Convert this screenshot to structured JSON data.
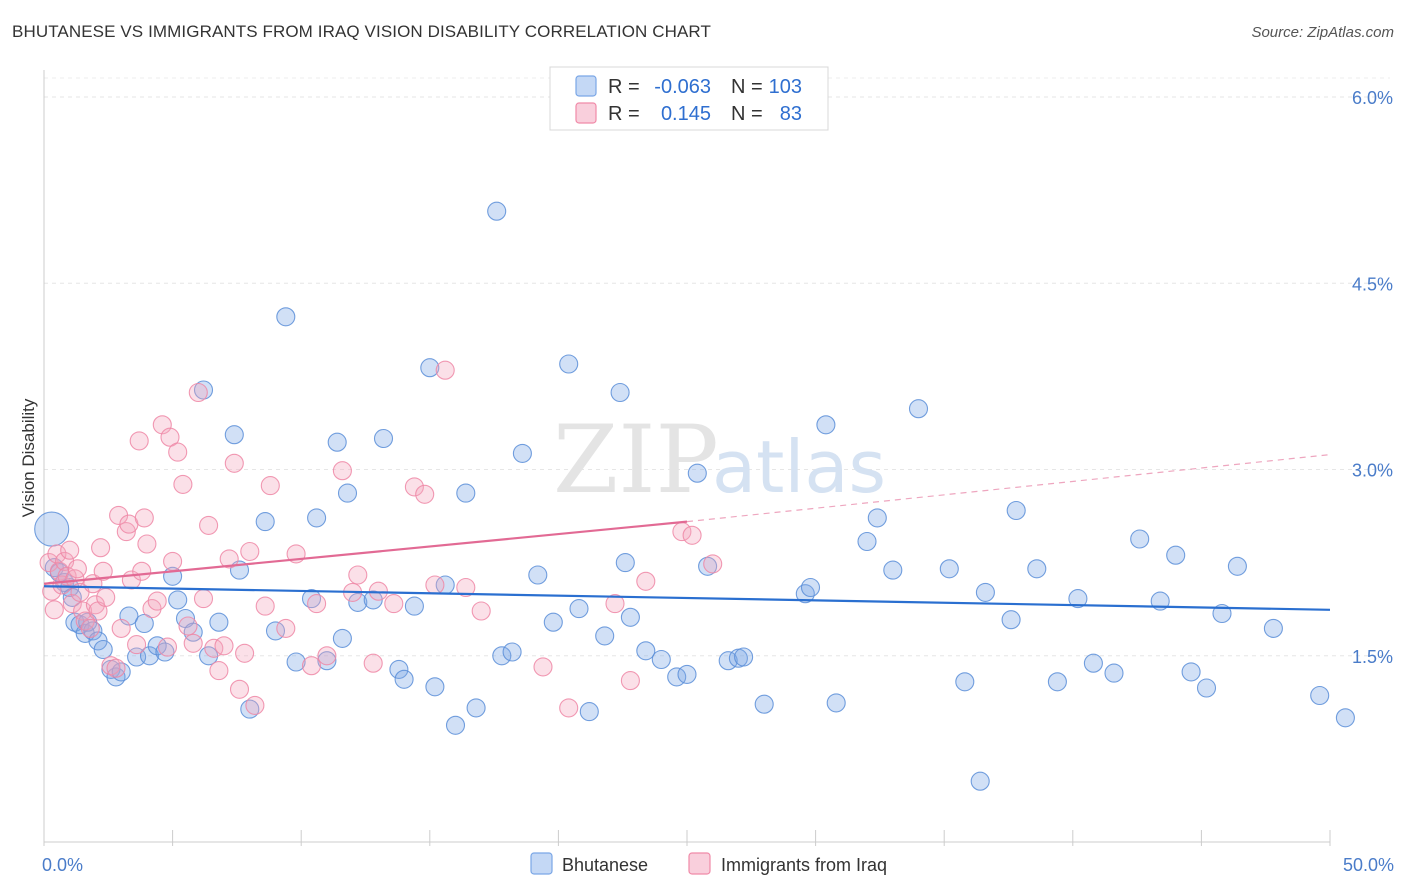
{
  "header": {
    "title": "BHUTANESE VS IMMIGRANTS FROM IRAQ VISION DISABILITY CORRELATION CHART",
    "source": "Source: ZipAtlas.com"
  },
  "watermark": {
    "zip": "ZIP",
    "atlas": "atlas"
  },
  "legend_top": {
    "rows": [
      {
        "r_label": "R =",
        "r_value": "-0.063",
        "n_label": "N =",
        "n_value": "103",
        "color": "#7aa6e6"
      },
      {
        "r_label": "R =",
        "r_value": "0.145",
        "n_label": "N =",
        "n_value": "83",
        "color": "#f08aa8"
      }
    ]
  },
  "chart_data": {
    "type": "scatter",
    "title": "BHUTANESE VS IMMIGRANTS FROM IRAQ VISION DISABILITY CORRELATION CHART",
    "xlabel": "",
    "ylabel": "Vision Disability",
    "xlim": [
      0,
      50
    ],
    "ylim": [
      0,
      6.2
    ],
    "x_tick_labels": [
      "0.0%",
      "50.0%"
    ],
    "y_ticks": [
      1.5,
      3.0,
      4.5,
      6.0
    ],
    "y_tick_labels": [
      "1.5%",
      "3.0%",
      "4.5%",
      "6.0%"
    ],
    "grid": true,
    "legend_position": "top-center",
    "series": [
      {
        "name": "Bhutanese",
        "color": "#7aa6e6",
        "stroke": "#5b8ed8",
        "trend": {
          "x": [
            0,
            50
          ],
          "y": [
            2.06,
            1.87
          ],
          "color": "#2a6fd0"
        },
        "points": [
          [
            0.3,
            2.52
          ],
          [
            0.4,
            2.21
          ],
          [
            0.6,
            2.17
          ],
          [
            0.8,
            2.09
          ],
          [
            1.0,
            2.05
          ],
          [
            1.1,
            1.97
          ],
          [
            1.2,
            1.77
          ],
          [
            1.4,
            1.75
          ],
          [
            1.6,
            1.68
          ],
          [
            1.7,
            1.77
          ],
          [
            1.9,
            1.7
          ],
          [
            2.1,
            1.62
          ],
          [
            2.3,
            1.55
          ],
          [
            2.6,
            1.39
          ],
          [
            2.8,
            1.33
          ],
          [
            3.0,
            1.37
          ],
          [
            3.3,
            1.82
          ],
          [
            3.6,
            1.49
          ],
          [
            3.9,
            1.76
          ],
          [
            4.1,
            1.5
          ],
          [
            4.4,
            1.58
          ],
          [
            4.7,
            1.53
          ],
          [
            5.0,
            2.14
          ],
          [
            5.2,
            1.95
          ],
          [
            5.5,
            1.8
          ],
          [
            5.8,
            1.69
          ],
          [
            6.2,
            3.64
          ],
          [
            6.4,
            1.5
          ],
          [
            6.8,
            1.77
          ],
          [
            7.4,
            3.28
          ],
          [
            7.6,
            2.19
          ],
          [
            8.0,
            1.07
          ],
          [
            8.6,
            2.58
          ],
          [
            9.0,
            1.7
          ],
          [
            9.4,
            4.23
          ],
          [
            9.8,
            1.45
          ],
          [
            10.4,
            1.96
          ],
          [
            10.6,
            2.61
          ],
          [
            11.0,
            1.46
          ],
          [
            11.4,
            3.22
          ],
          [
            11.6,
            1.64
          ],
          [
            11.8,
            2.81
          ],
          [
            12.2,
            1.93
          ],
          [
            12.8,
            1.95
          ],
          [
            13.2,
            3.25
          ],
          [
            13.8,
            1.39
          ],
          [
            14.0,
            1.31
          ],
          [
            14.4,
            1.9
          ],
          [
            15.0,
            3.82
          ],
          [
            15.2,
            1.25
          ],
          [
            15.6,
            2.07
          ],
          [
            16.0,
            0.94
          ],
          [
            16.4,
            2.81
          ],
          [
            16.8,
            1.08
          ],
          [
            17.6,
            5.08
          ],
          [
            17.8,
            1.5
          ],
          [
            18.2,
            1.53
          ],
          [
            18.6,
            3.13
          ],
          [
            19.2,
            2.15
          ],
          [
            19.8,
            1.77
          ],
          [
            20.4,
            3.85
          ],
          [
            20.8,
            1.88
          ],
          [
            21.2,
            1.05
          ],
          [
            21.8,
            1.66
          ],
          [
            22.4,
            3.62
          ],
          [
            22.6,
            2.25
          ],
          [
            22.8,
            1.81
          ],
          [
            23.4,
            1.54
          ],
          [
            24.0,
            1.47
          ],
          [
            24.6,
            1.33
          ],
          [
            25.0,
            1.35
          ],
          [
            25.4,
            2.97
          ],
          [
            25.8,
            2.22
          ],
          [
            26.6,
            1.46
          ],
          [
            27.0,
            1.48
          ],
          [
            27.2,
            1.49
          ],
          [
            28.0,
            1.11
          ],
          [
            29.6,
            2.0
          ],
          [
            29.8,
            2.05
          ],
          [
            30.4,
            3.36
          ],
          [
            30.8,
            1.12
          ],
          [
            32.0,
            2.42
          ],
          [
            32.4,
            2.61
          ],
          [
            33.0,
            2.19
          ],
          [
            34.0,
            3.49
          ],
          [
            35.2,
            2.2
          ],
          [
            35.8,
            1.29
          ],
          [
            36.4,
            0.49
          ],
          [
            36.6,
            2.01
          ],
          [
            37.6,
            1.79
          ],
          [
            37.8,
            2.67
          ],
          [
            38.6,
            2.2
          ],
          [
            39.4,
            1.29
          ],
          [
            40.2,
            1.96
          ],
          [
            40.8,
            1.44
          ],
          [
            41.6,
            1.36
          ],
          [
            42.6,
            2.44
          ],
          [
            43.4,
            1.94
          ],
          [
            44.0,
            2.31
          ],
          [
            44.6,
            1.37
          ],
          [
            45.2,
            1.24
          ],
          [
            45.8,
            1.84
          ],
          [
            46.4,
            2.22
          ],
          [
            47.8,
            1.72
          ],
          [
            49.6,
            1.18
          ],
          [
            50.6,
            1.0
          ]
        ]
      },
      {
        "name": "Immigrants from Iraq",
        "color": "#f4a6bd",
        "stroke": "#ee87a6",
        "trend": {
          "x": [
            0,
            25
          ],
          "y": [
            2.08,
            2.58
          ],
          "color": "#e26a94",
          "dash_to": [
            50,
            3.12
          ]
        },
        "points": [
          [
            0.2,
            2.25
          ],
          [
            0.3,
            2.02
          ],
          [
            0.4,
            1.87
          ],
          [
            0.5,
            2.32
          ],
          [
            0.6,
            2.18
          ],
          [
            0.7,
            2.07
          ],
          [
            0.8,
            2.26
          ],
          [
            0.9,
            2.14
          ],
          [
            1.0,
            2.35
          ],
          [
            1.1,
            1.92
          ],
          [
            1.2,
            2.12
          ],
          [
            1.3,
            2.2
          ],
          [
            1.4,
            2.01
          ],
          [
            1.5,
            1.86
          ],
          [
            1.6,
            1.78
          ],
          [
            1.8,
            1.72
          ],
          [
            1.9,
            2.08
          ],
          [
            2.0,
            1.91
          ],
          [
            2.1,
            1.86
          ],
          [
            2.2,
            2.37
          ],
          [
            2.3,
            2.18
          ],
          [
            2.4,
            1.97
          ],
          [
            2.6,
            1.42
          ],
          [
            2.8,
            1.4
          ],
          [
            2.9,
            2.63
          ],
          [
            3.0,
            1.72
          ],
          [
            3.2,
            2.5
          ],
          [
            3.3,
            2.56
          ],
          [
            3.4,
            2.11
          ],
          [
            3.6,
            1.59
          ],
          [
            3.7,
            3.23
          ],
          [
            3.8,
            2.18
          ],
          [
            3.9,
            2.61
          ],
          [
            4.0,
            2.4
          ],
          [
            4.2,
            1.88
          ],
          [
            4.4,
            1.94
          ],
          [
            4.6,
            3.36
          ],
          [
            4.8,
            1.57
          ],
          [
            4.9,
            3.26
          ],
          [
            5.0,
            2.26
          ],
          [
            5.2,
            3.14
          ],
          [
            5.4,
            2.88
          ],
          [
            5.6,
            1.74
          ],
          [
            5.8,
            1.6
          ],
          [
            6.0,
            3.62
          ],
          [
            6.2,
            1.96
          ],
          [
            6.4,
            2.55
          ],
          [
            6.6,
            1.56
          ],
          [
            6.8,
            1.38
          ],
          [
            7.0,
            1.58
          ],
          [
            7.2,
            2.28
          ],
          [
            7.4,
            3.05
          ],
          [
            7.6,
            1.23
          ],
          [
            7.8,
            1.52
          ],
          [
            8.0,
            2.34
          ],
          [
            8.2,
            1.1
          ],
          [
            8.6,
            1.9
          ],
          [
            8.8,
            2.87
          ],
          [
            9.4,
            1.72
          ],
          [
            9.8,
            2.32
          ],
          [
            10.4,
            1.42
          ],
          [
            10.6,
            1.92
          ],
          [
            11.0,
            1.5
          ],
          [
            11.6,
            2.99
          ],
          [
            12.0,
            2.01
          ],
          [
            12.2,
            2.15
          ],
          [
            12.8,
            1.44
          ],
          [
            13.0,
            2.02
          ],
          [
            13.6,
            1.92
          ],
          [
            14.4,
            2.86
          ],
          [
            14.8,
            2.8
          ],
          [
            15.2,
            2.07
          ],
          [
            15.6,
            3.8
          ],
          [
            16.4,
            2.05
          ],
          [
            17.0,
            1.86
          ],
          [
            19.4,
            1.41
          ],
          [
            20.4,
            1.08
          ],
          [
            22.2,
            1.92
          ],
          [
            22.8,
            1.3
          ],
          [
            23.4,
            2.1
          ],
          [
            24.8,
            2.5
          ],
          [
            25.2,
            2.47
          ],
          [
            26.0,
            2.24
          ]
        ]
      }
    ]
  },
  "legend_bottom": {
    "items": [
      {
        "label": "Bhutanese",
        "color": "#7aa6e6"
      },
      {
        "label": "Immigrants from Iraq",
        "color": "#f4a6bd"
      }
    ]
  }
}
